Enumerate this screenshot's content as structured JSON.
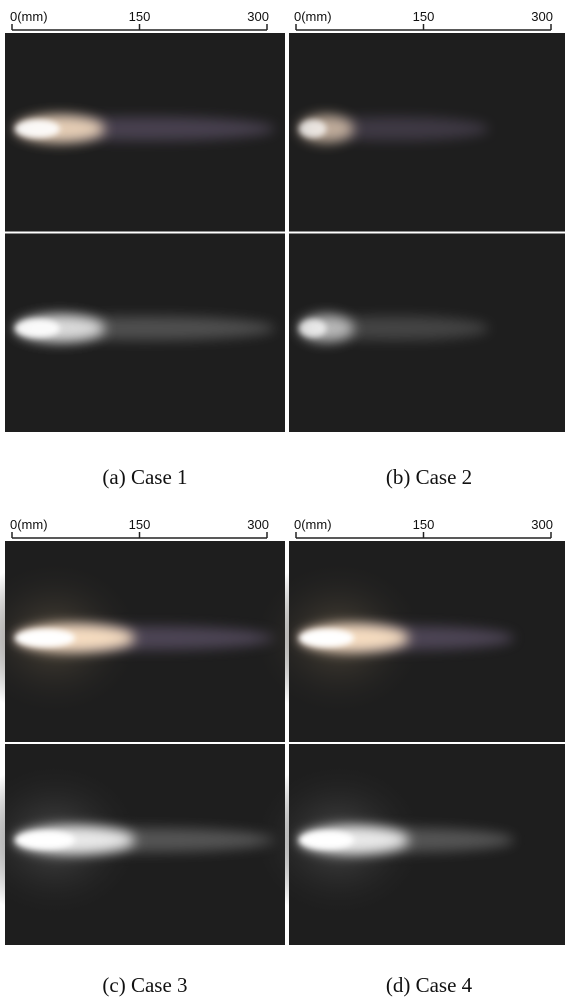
{
  "panels": [
    {
      "scale_labels": [
        "0(mm)",
        "150",
        "300"
      ],
      "caption": "(a) Case 1"
    },
    {
      "scale_labels": [
        "0(mm)",
        "150",
        "300"
      ],
      "caption": "(b) Case 2"
    },
    {
      "scale_labels": [
        "0(mm)",
        "150",
        "300"
      ],
      "caption": "(c) Case 3"
    },
    {
      "scale_labels": [
        "0(mm)",
        "150",
        "300"
      ],
      "caption": "(d) Case 4"
    }
  ]
}
